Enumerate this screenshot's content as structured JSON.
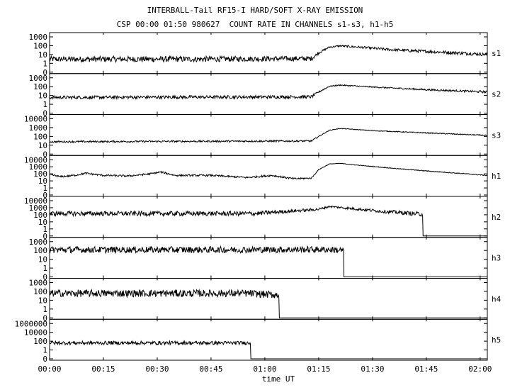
{
  "title": "INTERBALL-Tail RF15-I HARD/SOFT X-RAY EMISSION",
  "subtitle": "CSP 00:00 01:50 980627  COUNT RATE IN CHANNELS s1-s3, h1-h5",
  "chart_data": {
    "type": "line",
    "title": "INTERBALL-Tail RF15-I HARD/SOFT X-RAY EMISSION",
    "subtitle": "CSP 00:00 01:50 980627  COUNT RATE IN CHANNELS s1-s3, h1-h5",
    "xlabel": "time UT",
    "x_ticks": [
      "00:00",
      "00:15",
      "00:30",
      "00:45",
      "01:00",
      "01:15",
      "01:30",
      "01:45",
      "02:00"
    ],
    "xlim_minutes": [
      0,
      122
    ],
    "y_scale": "log",
    "grid": false,
    "panels": [
      {
        "name": "s1",
        "y_ticks": [
          "1000",
          "100",
          "10",
          "1",
          "0"
        ],
        "series": [
          {
            "t": 0,
            "v": 3,
            "noise": 1.6
          },
          {
            "t": 40,
            "v": 3,
            "noise": 1.6
          },
          {
            "t": 73,
            "v": 3.5,
            "noise": 1.5
          },
          {
            "t": 75,
            "v": 15,
            "noise": 1.2
          },
          {
            "t": 78,
            "v": 70,
            "noise": 1.15
          },
          {
            "t": 81,
            "v": 95,
            "noise": 1.15
          },
          {
            "t": 86,
            "v": 70,
            "noise": 1.2
          },
          {
            "t": 95,
            "v": 35,
            "noise": 1.25
          },
          {
            "t": 110,
            "v": 18,
            "noise": 1.3
          },
          {
            "t": 122,
            "v": 10,
            "noise": 1.3
          }
        ]
      },
      {
        "name": "s2",
        "y_ticks": [
          "1000",
          "100",
          "10",
          "1",
          "0"
        ],
        "series": [
          {
            "t": 0,
            "v": 6,
            "noise": 1.3
          },
          {
            "t": 73,
            "v": 7,
            "noise": 1.3
          },
          {
            "t": 75,
            "v": 25,
            "noise": 1.15
          },
          {
            "t": 78,
            "v": 110,
            "noise": 1.1
          },
          {
            "t": 81,
            "v": 150,
            "noise": 1.1
          },
          {
            "t": 90,
            "v": 90,
            "noise": 1.1
          },
          {
            "t": 105,
            "v": 45,
            "noise": 1.15
          },
          {
            "t": 122,
            "v": 25,
            "noise": 1.2
          }
        ]
      },
      {
        "name": "s3",
        "y_ticks": [
          "10000",
          "1000",
          "100",
          "10",
          "0"
        ],
        "series": [
          {
            "t": 0,
            "v": 25,
            "noise": 1.15
          },
          {
            "t": 73,
            "v": 30,
            "noise": 1.15
          },
          {
            "t": 75,
            "v": 100,
            "noise": 1.08
          },
          {
            "t": 78,
            "v": 500,
            "noise": 1.05
          },
          {
            "t": 81,
            "v": 800,
            "noise": 1.05
          },
          {
            "t": 90,
            "v": 450,
            "noise": 1.06
          },
          {
            "t": 105,
            "v": 250,
            "noise": 1.08
          },
          {
            "t": 122,
            "v": 130,
            "noise": 1.08
          }
        ]
      },
      {
        "name": "h1",
        "y_ticks": [
          "10000",
          "1000",
          "100",
          "10",
          "1",
          "0"
        ],
        "series": [
          {
            "t": 0,
            "v": 80,
            "noise": 1.2
          },
          {
            "t": 3,
            "v": 40,
            "noise": 1.2
          },
          {
            "t": 7,
            "v": 60,
            "noise": 1.2
          },
          {
            "t": 10,
            "v": 120,
            "noise": 1.2
          },
          {
            "t": 15,
            "v": 60,
            "noise": 1.2
          },
          {
            "t": 22,
            "v": 50,
            "noise": 1.2
          },
          {
            "t": 28,
            "v": 100,
            "noise": 1.2
          },
          {
            "t": 31,
            "v": 180,
            "noise": 1.2
          },
          {
            "t": 35,
            "v": 60,
            "noise": 1.2
          },
          {
            "t": 45,
            "v": 60,
            "noise": 1.2
          },
          {
            "t": 55,
            "v": 30,
            "noise": 1.2
          },
          {
            "t": 62,
            "v": 60,
            "noise": 1.2
          },
          {
            "t": 68,
            "v": 20,
            "noise": 1.2
          },
          {
            "t": 73,
            "v": 25,
            "noise": 1.15
          },
          {
            "t": 75,
            "v": 400,
            "noise": 1.08
          },
          {
            "t": 78,
            "v": 2500,
            "noise": 1.05
          },
          {
            "t": 81,
            "v": 3000,
            "noise": 1.05
          },
          {
            "t": 87,
            "v": 1500,
            "noise": 1.06
          },
          {
            "t": 100,
            "v": 400,
            "noise": 1.08
          },
          {
            "t": 122,
            "v": 60,
            "noise": 1.1
          }
        ]
      },
      {
        "name": "h2",
        "y_ticks": [
          "10000",
          "1000",
          "100",
          "10",
          "1",
          "0"
        ],
        "series": [
          {
            "t": 0,
            "v": 150,
            "noise": 1.6
          },
          {
            "t": 57,
            "v": 150,
            "noise": 1.6
          },
          {
            "t": 75,
            "v": 600,
            "noise": 1.3
          },
          {
            "t": 78,
            "v": 1500,
            "noise": 1.2
          },
          {
            "t": 85,
            "v": 700,
            "noise": 1.3
          },
          {
            "t": 93,
            "v": 300,
            "noise": 1.4
          },
          {
            "t": 104,
            "v": 120,
            "noise": 1.6
          }
        ]
      },
      {
        "name": "h3",
        "y_ticks": [
          "1000",
          "100",
          "10",
          "1",
          "0"
        ],
        "series": [
          {
            "t": 0,
            "v": 120,
            "noise": 1.7
          },
          {
            "t": 55,
            "v": 120,
            "noise": 1.7
          },
          {
            "t": 77,
            "v": 130,
            "noise": 1.7
          },
          {
            "t": 82,
            "v": 100,
            "noise": 1.7
          }
        ]
      },
      {
        "name": "h4",
        "y_ticks": [
          "1000",
          "100",
          "10",
          "1",
          "0"
        ],
        "series": [
          {
            "t": 0,
            "v": 60,
            "noise": 1.8
          },
          {
            "t": 55,
            "v": 60,
            "noise": 1.8
          },
          {
            "t": 63,
            "v": 40,
            "noise": 1.8
          },
          {
            "t": 64,
            "v": 40,
            "noise": 1.8
          }
        ]
      },
      {
        "name": "h5",
        "y_ticks": [
          "1000000",
          "10000",
          "100",
          "1",
          "0"
        ],
        "series": [
          {
            "t": 0,
            "v": 40,
            "noise": 1.8
          },
          {
            "t": 56,
            "v": 40,
            "noise": 1.8
          }
        ]
      }
    ]
  }
}
